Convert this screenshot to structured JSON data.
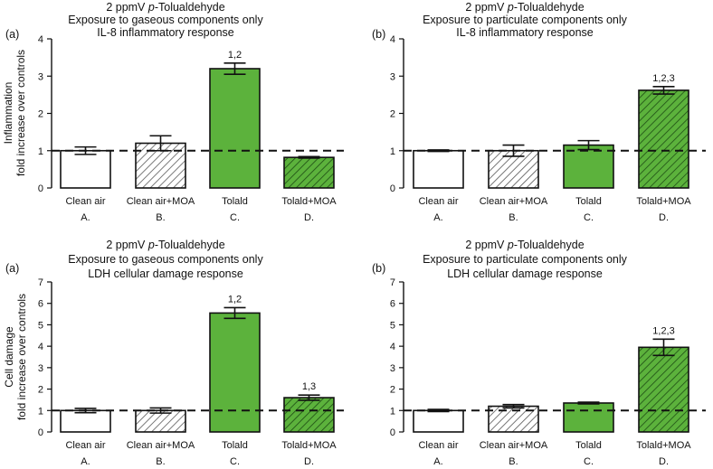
{
  "chart_data": [
    {
      "type": "bar",
      "panel_label": "(a)",
      "title_lines": [
        [
          {
            "text": "2 ppmV "
          },
          {
            "text": "p",
            "italic": true
          },
          {
            "text": "-Tolualdehyde"
          }
        ],
        [
          {
            "text": "Exposure to gaseous components only"
          }
        ],
        [
          {
            "text": "IL-8 inflammatory response"
          }
        ]
      ],
      "categories": [
        "Clean air",
        "Clean air+MOA",
        "Tolald",
        "Tolald+MOA"
      ],
      "category_letters": [
        "A.",
        "B.",
        "C.",
        "D."
      ],
      "values": [
        1.0,
        1.2,
        3.2,
        0.82
      ],
      "errors": [
        0.1,
        0.2,
        0.15,
        0.02
      ],
      "fills": [
        "white",
        "hatch",
        "green",
        "green-hatch"
      ],
      "annotations": [
        "",
        "",
        "1,2",
        ""
      ],
      "ylabel_lines": [
        "Inflammation",
        "fold increase over controls"
      ],
      "ylim": [
        0,
        4
      ],
      "yticks": [
        0,
        1,
        2,
        3,
        4
      ],
      "reference_line": 1
    },
    {
      "type": "bar",
      "panel_label": "(b)",
      "title_lines": [
        [
          {
            "text": "2 ppmV "
          },
          {
            "text": "p",
            "italic": true
          },
          {
            "text": "-Tolualdehyde"
          }
        ],
        [
          {
            "text": "Exposure to particulate components only"
          }
        ],
        [
          {
            "text": "IL-8 inflammatory response"
          }
        ]
      ],
      "categories": [
        "Clean air",
        "Clean air+MOA",
        "Tolald",
        "Tolald+MOA"
      ],
      "category_letters": [
        "A.",
        "B.",
        "C.",
        "D."
      ],
      "values": [
        1.0,
        1.0,
        1.15,
        2.62
      ],
      "errors": [
        0.02,
        0.15,
        0.12,
        0.1
      ],
      "fills": [
        "white",
        "hatch",
        "green",
        "green-hatch"
      ],
      "annotations": [
        "",
        "",
        "",
        "1,2,3"
      ],
      "ylabel_lines": [],
      "ylim": [
        0,
        4
      ],
      "yticks": [
        0,
        1,
        2,
        3,
        4
      ],
      "reference_line": 1
    },
    {
      "type": "bar",
      "panel_label": "(a)",
      "title_lines": [
        [
          {
            "text": "2 ppmV "
          },
          {
            "text": "p",
            "italic": true
          },
          {
            "text": "-Tolualdehyde"
          }
        ],
        [
          {
            "text": "Exposure to gaseous components only"
          }
        ],
        [
          {
            "text": "LDH cellular damage response"
          }
        ]
      ],
      "categories": [
        "Clean air",
        "Clean air+MOA",
        "Tolald",
        "Tolald+MOA"
      ],
      "category_letters": [
        "A.",
        "B.",
        "C.",
        "D."
      ],
      "values": [
        1.0,
        1.0,
        5.55,
        1.6
      ],
      "errors": [
        0.1,
        0.12,
        0.25,
        0.12
      ],
      "fills": [
        "white",
        "hatch",
        "green",
        "green-hatch"
      ],
      "annotations": [
        "",
        "",
        "1,2",
        "1,3"
      ],
      "ylabel_lines": [
        "Cell damage",
        "fold increase over controls"
      ],
      "ylim": [
        0,
        7
      ],
      "yticks": [
        0,
        1,
        2,
        3,
        4,
        5,
        6,
        7
      ],
      "reference_line": 1
    },
    {
      "type": "bar",
      "panel_label": "(b)",
      "title_lines": [
        [
          {
            "text": "2 ppmV "
          },
          {
            "text": "p",
            "italic": true
          },
          {
            "text": "-Tolualdehyde"
          }
        ],
        [
          {
            "text": "Exposure to particulate components only"
          }
        ],
        [
          {
            "text": "LDH cellular damage response"
          }
        ]
      ],
      "categories": [
        "Clean air",
        "Clean air+MOA",
        "Tolald",
        "Tolald+MOA"
      ],
      "category_letters": [
        "A.",
        "B.",
        "C.",
        "D."
      ],
      "values": [
        1.0,
        1.2,
        1.35,
        3.95
      ],
      "errors": [
        0.05,
        0.08,
        0.04,
        0.38
      ],
      "fills": [
        "white",
        "hatch",
        "green",
        "green-hatch"
      ],
      "annotations": [
        "",
        "",
        "",
        "1,2,3"
      ],
      "ylabel_lines": [],
      "ylim": [
        0,
        7
      ],
      "yticks": [
        0,
        1,
        2,
        3,
        4,
        5,
        6,
        7
      ],
      "reference_line": 1
    }
  ],
  "colors": {
    "green": "#5cb23c",
    "edge": "#111111",
    "hatch_white_bg": "#ffffff",
    "hatch_line_white": "#555555",
    "hatch_line_green": "#1e4d14"
  }
}
